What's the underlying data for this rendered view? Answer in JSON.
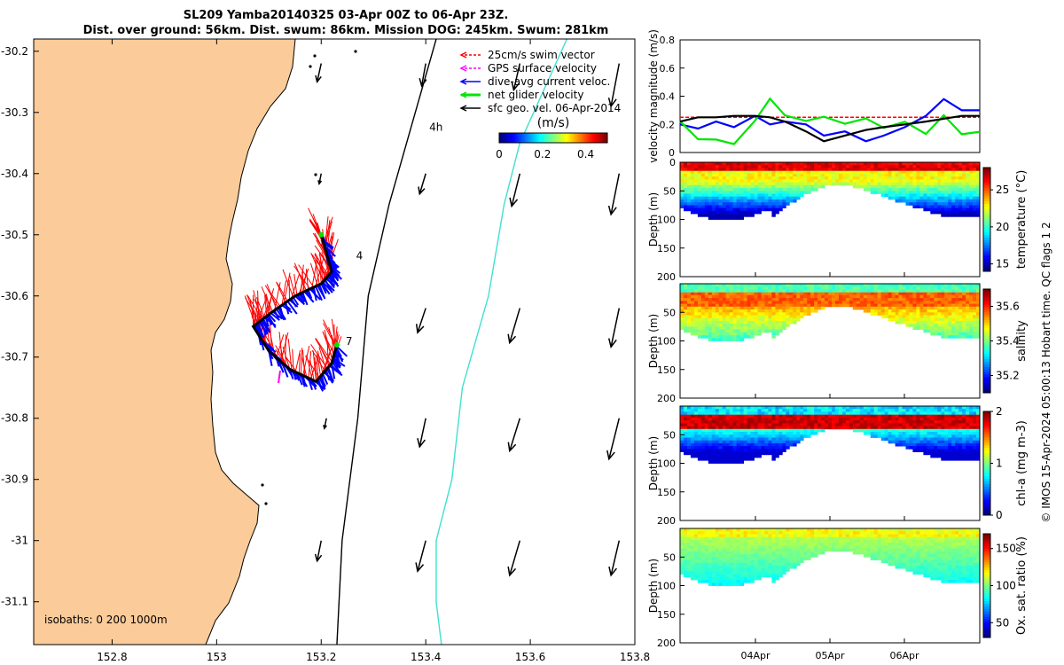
{
  "title": {
    "line1": "SL209 Yamba20140325 03-Apr 00Z to 06-Apr 23Z.",
    "line2": "Dist. over ground: 56km. Dist. swum: 86km. Mission DOG: 245km. Swum: 281km"
  },
  "colors": {
    "land": "#fbcb99",
    "swim_vector": "#ff0000",
    "gps_velocity": "#ff00ff",
    "current": "#0000ff",
    "glider_velocity": "#00e600",
    "geo_velocity": "#000000",
    "isobath_200": "#000000",
    "isobath_1000": "#40e0d0"
  },
  "chart_data": [
    {
      "type": "scatter",
      "panel": "map",
      "xticks": [
        "152.8",
        "153",
        "153.2",
        "153.4",
        "153.6",
        "153.8"
      ],
      "yticks": [
        "-30.2",
        "-30.3",
        "-30.4",
        "-30.5",
        "-30.6",
        "-30.7",
        "-30.8",
        "-30.9",
        "-31",
        "-31.1"
      ],
      "xlim": [
        152.65,
        153.8
      ],
      "ylim": [
        -31.17,
        -30.18
      ],
      "legend": {
        "placement": "top-right",
        "entries": [
          "25cm/s swim vector",
          "GPS surface velocity",
          "dive-avg current veloc.",
          "net glider velocity",
          "sfc geo. vel. 06-Apr-2014"
        ]
      },
      "colorbar": {
        "label": "(m/s)",
        "ticks": [
          "0",
          "0.2",
          "0.4"
        ],
        "range": [
          0,
          0.5
        ]
      },
      "isobaths_label": "isobaths: 0   200  1000m",
      "annotations": [
        {
          "text": "4h",
          "x": 153.4,
          "y": -30.33
        },
        {
          "text": "4",
          "x": 153.26,
          "y": -30.54
        },
        {
          "text": "7",
          "x": 153.24,
          "y": -30.68
        }
      ],
      "glider_track": [
        [
          153.2,
          -30.5
        ],
        [
          153.21,
          -30.53
        ],
        [
          153.22,
          -30.56
        ],
        [
          153.2,
          -30.58
        ],
        [
          153.15,
          -30.6
        ],
        [
          153.1,
          -30.63
        ],
        [
          153.07,
          -30.65
        ],
        [
          153.1,
          -30.69
        ],
        [
          153.14,
          -30.72
        ],
        [
          153.19,
          -30.74
        ],
        [
          153.22,
          -30.71
        ],
        [
          153.23,
          -30.68
        ]
      ],
      "isobath_200": [
        [
          153.42,
          -30.18
        ],
        [
          153.38,
          -30.3
        ],
        [
          153.33,
          -30.45
        ],
        [
          153.29,
          -30.6
        ],
        [
          153.27,
          -30.8
        ],
        [
          153.24,
          -31
        ],
        [
          153.23,
          -31.17
        ]
      ],
      "isobath_1000": [
        [
          153.67,
          -30.18
        ],
        [
          153.58,
          -30.35
        ],
        [
          153.55,
          -30.45
        ],
        [
          153.52,
          -30.6
        ],
        [
          153.47,
          -30.75
        ],
        [
          153.45,
          -30.9
        ],
        [
          153.42,
          -31.0
        ],
        [
          153.42,
          -31.1
        ],
        [
          153.43,
          -31.17
        ]
      ],
      "geo_vectors": [
        {
          "x": 153.2,
          "y": -30.22,
          "u": -0.02,
          "v": -0.09
        },
        {
          "x": 153.4,
          "y": -30.22,
          "u": -0.02,
          "v": -0.11
        },
        {
          "x": 153.58,
          "y": -30.22,
          "u": -0.03,
          "v": -0.13
        },
        {
          "x": 153.77,
          "y": -30.22,
          "u": -0.04,
          "v": -0.21
        },
        {
          "x": 153.2,
          "y": -30.4,
          "u": -0.01,
          "v": -0.05
        },
        {
          "x": 153.4,
          "y": -30.4,
          "u": -0.03,
          "v": -0.1
        },
        {
          "x": 153.58,
          "y": -30.4,
          "u": -0.04,
          "v": -0.16
        },
        {
          "x": 153.77,
          "y": -30.4,
          "u": -0.04,
          "v": -0.2
        },
        {
          "x": 153.4,
          "y": -30.62,
          "u": -0.04,
          "v": -0.12
        },
        {
          "x": 153.58,
          "y": -30.62,
          "u": -0.05,
          "v": -0.17
        },
        {
          "x": 153.77,
          "y": -30.62,
          "u": -0.04,
          "v": -0.19
        },
        {
          "x": 153.21,
          "y": -30.8,
          "u": -0.01,
          "v": -0.05
        },
        {
          "x": 153.4,
          "y": -30.8,
          "u": -0.03,
          "v": -0.14
        },
        {
          "x": 153.58,
          "y": -30.8,
          "u": -0.05,
          "v": -0.16
        },
        {
          "x": 153.77,
          "y": -30.8,
          "u": -0.05,
          "v": -0.2
        },
        {
          "x": 153.2,
          "y": -31.0,
          "u": -0.02,
          "v": -0.1
        },
        {
          "x": 153.4,
          "y": -31.0,
          "u": -0.04,
          "v": -0.15
        },
        {
          "x": 153.58,
          "y": -31.0,
          "u": -0.05,
          "v": -0.17
        },
        {
          "x": 153.77,
          "y": -31.0,
          "u": -0.04,
          "v": -0.17
        }
      ]
    },
    {
      "type": "line",
      "panel": "velocity",
      "ylabel": "velocity magnitude (m/s)",
      "ylim": [
        0,
        0.8
      ],
      "yticks": [
        "0",
        "0.2",
        "0.4",
        "0.6",
        "0.8"
      ],
      "x": [
        0,
        0.06,
        0.12,
        0.18,
        0.25,
        0.3,
        0.35,
        0.42,
        0.48,
        0.55,
        0.62,
        0.68,
        0.75,
        0.82,
        0.88,
        0.94,
        1.0
      ],
      "series": [
        {
          "color": "#ff0000",
          "values": [
            0.25,
            0.25,
            0.25,
            0.25,
            0.25,
            0.25,
            0.25,
            0.25,
            0.25,
            0.25,
            0.25,
            0.25,
            0.25,
            0.25,
            0.25,
            0.25,
            0.25
          ]
        },
        {
          "color": "#0000ff",
          "values": [
            0.2,
            0.17,
            0.22,
            0.18,
            0.26,
            0.2,
            0.22,
            0.2,
            0.12,
            0.15,
            0.08,
            0.12,
            0.18,
            0.26,
            0.38,
            0.3,
            0.3
          ]
        },
        {
          "color": "#00e600",
          "values": [
            0.25,
            0.12,
            0.1,
            0.07,
            0.2,
            0.38,
            0.26,
            0.22,
            0.25,
            0.2,
            0.25,
            0.15,
            0.2,
            0.15,
            0.25,
            0.12,
            0.12
          ]
        },
        {
          "color": "#000000",
          "values": [
            0.22,
            0.25,
            0.25,
            0.26,
            0.26,
            0.25,
            0.22,
            0.15,
            0.08,
            0.12,
            0.16,
            0.18,
            0.2,
            0.22,
            0.24,
            0.26,
            0.26
          ]
        }
      ]
    },
    {
      "type": "heatmap",
      "panel": "temperature",
      "ylabel": "Depth (m)",
      "yticks": [
        "0",
        "50",
        "100",
        "150",
        "200"
      ],
      "ylim": [
        0,
        200
      ],
      "clabel": "temperature (°C)",
      "cticks": [
        "15",
        "20",
        "25"
      ],
      "crange": [
        14,
        28
      ]
    },
    {
      "type": "heatmap",
      "panel": "salinity",
      "ylabel": "Depth (m)",
      "yticks": [
        "50",
        "100",
        "150",
        "200"
      ],
      "ylim": [
        0,
        200
      ],
      "clabel": "salinity",
      "cticks": [
        "35.2",
        "35.4",
        "35.6"
      ],
      "crange": [
        35.1,
        35.7
      ]
    },
    {
      "type": "heatmap",
      "panel": "chlorophyll",
      "ylabel": "Depth (m)",
      "yticks": [
        "50",
        "100",
        "150",
        "200"
      ],
      "ylim": [
        0,
        200
      ],
      "clabel": "chl-a (mg m-3)",
      "cticks": [
        "0",
        "1",
        "2"
      ],
      "crange": [
        0,
        2
      ]
    },
    {
      "type": "heatmap",
      "panel": "oxygen",
      "ylabel": "Depth (m)",
      "yticks": [
        "50",
        "100",
        "150",
        "200"
      ],
      "ylim": [
        0,
        200
      ],
      "clabel": "Ox. sat. ratio (%)",
      "cticks": [
        "50",
        "100",
        "150"
      ],
      "crange": [
        30,
        170
      ],
      "xticks": [
        "04Apr",
        "05Apr",
        "06Apr"
      ]
    }
  ],
  "credit": "© IMOS 15-Apr-2024 05:00:13 Hobart time. QC flags 1  2"
}
